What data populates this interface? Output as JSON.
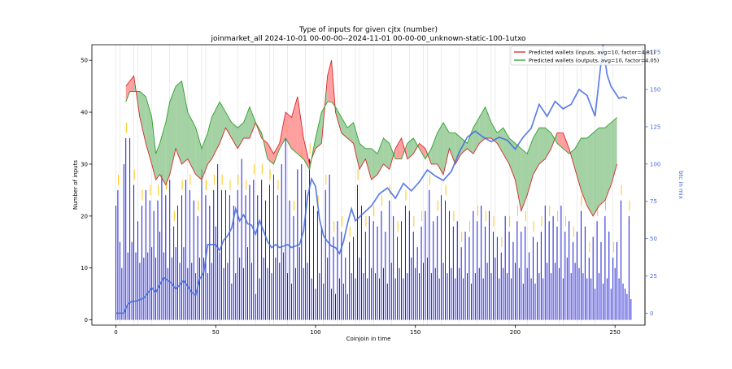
{
  "chart_data": {
    "type": "bar",
    "title": "Type of inputs for given cjtx (number)",
    "subtitle": "joinmarket_all 2024-10-01 00-00-00--2024-11-01 00-00-00_unknown-static-100-1utxo",
    "xlabel": "Coinjoin in time",
    "ylabel": "Number of inputs",
    "y2label": "btc in mix",
    "xlim": [
      -12,
      265
    ],
    "ylim": [
      -1,
      53
    ],
    "y2lim": [
      -8,
      180
    ],
    "xticks": [
      0,
      50,
      100,
      150,
      200,
      250
    ],
    "yticks": [
      0,
      10,
      20,
      30,
      40,
      50
    ],
    "y2ticks": [
      0,
      25,
      50,
      75,
      100,
      125,
      150,
      175
    ],
    "grid": "vertical lines at selected coinjoins",
    "legend_position": "top-right",
    "colors": {
      "bars": "#0000cc",
      "btc_line": "#4169e1",
      "inputs_line": "#d62728",
      "inputs_fill": "#ff8080",
      "outputs_line": "#2ca02c",
      "outputs_fill": "#7fbf7f",
      "y2_axis": "#4169e1",
      "accent_bars": "#ffc000"
    },
    "legend": [
      {
        "label": "Predicted wallets (inputs, avg=10, factor=4.81)",
        "color": "#d62728"
      },
      {
        "label": "Predicted wallets (outputs, avg=10, factor=4.05)",
        "color": "#2ca02c"
      }
    ],
    "series": [
      {
        "kind": "bars",
        "x_range": [
          0,
          256
        ],
        "values": [
          22,
          25,
          15,
          10,
          30,
          35,
          13,
          35,
          15,
          26,
          13,
          19,
          11,
          22,
          12,
          25,
          13,
          23,
          14,
          21,
          12,
          23,
          17,
          28,
          13,
          24,
          10,
          27,
          12,
          18,
          14,
          22,
          11,
          24,
          14,
          27,
          10,
          25,
          11,
          23,
          9,
          20,
          12,
          29,
          12,
          24,
          9,
          22,
          11,
          25,
          18,
          30,
          13,
          25,
          10,
          25,
          11,
          24,
          7,
          22,
          9,
          25,
          12,
          31,
          10,
          24,
          14,
          26,
          11,
          27,
          5,
          24,
          8,
          27,
          12,
          23,
          10,
          26,
          9,
          28,
          12,
          24,
          11,
          30,
          13,
          35,
          9,
          23,
          7,
          20,
          10,
          29,
          14,
          30,
          10,
          25,
          11,
          31,
          8,
          22,
          6,
          21,
          9,
          18,
          7,
          25,
          12,
          28,
          6,
          16,
          5,
          19,
          8,
          17,
          7,
          12,
          5,
          15,
          9,
          16,
          8,
          26,
          12,
          22,
          9,
          17,
          8,
          20,
          10,
          19,
          9,
          18,
          8,
          21,
          10,
          17,
          7,
          23,
          11,
          20,
          8,
          16,
          10,
          19,
          8,
          22,
          9,
          21,
          12,
          17,
          10,
          14,
          9,
          18,
          11,
          21,
          12,
          25,
          9,
          19,
          10,
          20,
          8,
          24,
          11,
          23,
          9,
          21,
          10,
          18,
          8,
          19,
          10,
          14,
          8,
          17,
          9,
          16,
          7,
          21,
          9,
          19,
          10,
          22,
          8,
          18,
          11,
          21,
          9,
          17,
          12,
          16,
          8,
          13,
          10,
          20,
          9,
          17,
          8,
          15,
          11,
          19,
          10,
          17,
          7,
          18,
          10,
          13,
          8,
          16,
          7,
          15,
          9,
          17,
          8,
          22,
          11,
          19,
          9,
          20,
          11,
          18,
          10,
          22,
          8,
          17,
          12,
          19,
          9,
          15,
          11,
          17,
          10,
          21,
          9,
          18,
          8,
          12,
          8,
          16,
          6,
          19,
          9,
          15,
          7,
          20,
          8,
          17,
          6,
          12,
          10,
          15,
          8,
          23,
          7,
          6,
          5,
          20,
          4
        ]
      },
      {
        "kind": "fill_between",
        "name": "Predicted wallets (inputs, avg=10, factor=4.81)",
        "x": [
          5,
          7,
          9,
          12,
          15,
          18,
          20,
          22,
          25,
          27,
          30,
          33,
          36,
          40,
          43,
          46,
          48,
          52,
          55,
          58,
          61,
          64,
          67,
          70,
          73,
          76,
          79,
          82,
          85,
          88,
          91,
          94,
          97,
          100,
          103,
          106,
          108,
          110,
          113,
          116,
          119,
          122,
          125,
          128,
          131,
          134,
          137,
          140,
          143,
          146,
          149,
          152,
          155,
          158,
          161,
          164,
          167,
          170,
          173,
          176,
          179,
          182,
          185,
          188,
          191,
          194,
          197,
          200,
          203,
          206,
          209,
          212,
          215,
          218,
          221,
          224,
          227,
          230,
          233,
          236,
          239,
          242,
          245,
          248,
          251
        ],
        "values": [
          45,
          46,
          47,
          39,
          34,
          30,
          27,
          28,
          26,
          28,
          33,
          30,
          31,
          28,
          27,
          30,
          31,
          34,
          37,
          35,
          33,
          35,
          35,
          38,
          35,
          34,
          32,
          34,
          40,
          39,
          43,
          35,
          30,
          33,
          34,
          47,
          50,
          40,
          36,
          35,
          34,
          29,
          31,
          27,
          28,
          30,
          29,
          33,
          35,
          31,
          32,
          34,
          33,
          30,
          30,
          28,
          33,
          30,
          32,
          33,
          32,
          34,
          35,
          35,
          34,
          32,
          30,
          27,
          21,
          24,
          28,
          30,
          31,
          33,
          36,
          36,
          33,
          29,
          25,
          22,
          20,
          22,
          23,
          26,
          30
        ]
      },
      {
        "kind": "fill_between",
        "name": "Predicted wallets (outputs, avg=10, factor=4.05)",
        "x": [
          5,
          7,
          9,
          12,
          15,
          18,
          20,
          22,
          25,
          27,
          30,
          33,
          36,
          40,
          43,
          46,
          48,
          52,
          55,
          58,
          61,
          64,
          67,
          70,
          73,
          76,
          79,
          82,
          85,
          88,
          91,
          94,
          97,
          100,
          103,
          106,
          108,
          110,
          113,
          116,
          119,
          122,
          125,
          128,
          131,
          134,
          137,
          140,
          143,
          146,
          149,
          152,
          155,
          158,
          161,
          164,
          167,
          170,
          173,
          176,
          179,
          182,
          185,
          188,
          191,
          194,
          197,
          200,
          203,
          206,
          209,
          212,
          215,
          218,
          221,
          224,
          227,
          230,
          233,
          236,
          239,
          242,
          245,
          248,
          251
        ],
        "values": [
          42,
          44,
          44,
          44,
          43,
          39,
          32,
          34,
          38,
          42,
          45,
          46,
          40,
          37,
          33,
          36,
          39,
          42,
          40,
          38,
          37,
          38,
          41,
          38,
          36,
          31,
          30,
          33,
          35,
          33,
          32,
          31,
          29,
          35,
          40,
          42,
          42,
          41,
          39,
          37,
          38,
          34,
          33,
          33,
          32,
          35,
          34,
          31,
          31,
          34,
          35,
          33,
          31,
          33,
          36,
          38,
          36,
          36,
          35,
          34,
          37,
          39,
          41,
          38,
          36,
          37,
          35,
          34,
          33,
          32,
          35,
          37,
          37,
          36,
          34,
          33,
          32,
          33,
          35,
          35,
          36,
          37,
          37,
          38,
          39
        ]
      },
      {
        "kind": "line",
        "axis": "y2",
        "name": "btc in mix",
        "x": [
          0,
          4,
          6,
          8,
          10,
          14,
          18,
          20,
          24,
          28,
          30,
          34,
          38,
          40,
          42,
          44,
          46,
          50,
          52,
          54,
          56,
          58,
          60,
          62,
          64,
          66,
          68,
          70,
          72,
          74,
          76,
          78,
          80,
          82,
          84,
          86,
          88,
          90,
          92,
          94,
          96,
          98,
          100,
          102,
          104,
          106,
          108,
          110,
          112,
          114,
          116,
          118,
          120,
          124,
          128,
          132,
          136,
          140,
          144,
          148,
          152,
          156,
          160,
          164,
          168,
          172,
          176,
          180,
          184,
          188,
          192,
          196,
          200,
          204,
          208,
          212,
          216,
          220,
          224,
          228,
          232,
          236,
          240,
          244,
          246,
          248,
          250,
          252,
          254,
          256
        ],
        "values": [
          0,
          0,
          6,
          8,
          8,
          10,
          17,
          14,
          24,
          20,
          16,
          22,
          14,
          12,
          23,
          27,
          46,
          46,
          42,
          49,
          52,
          57,
          70,
          62,
          66,
          60,
          59,
          53,
          62,
          55,
          48,
          44,
          46,
          44,
          45,
          46,
          44,
          45,
          46,
          55,
          78,
          90,
          85,
          63,
          52,
          48,
          45,
          44,
          40,
          48,
          60,
          70,
          62,
          67,
          72,
          80,
          84,
          77,
          87,
          82,
          88,
          96,
          92,
          89,
          95,
          108,
          118,
          122,
          118,
          115,
          118,
          116,
          110,
          118,
          124,
          140,
          132,
          142,
          137,
          140,
          150,
          146,
          132,
          180,
          160,
          152,
          148,
          144,
          145,
          144
        ]
      }
    ]
  }
}
